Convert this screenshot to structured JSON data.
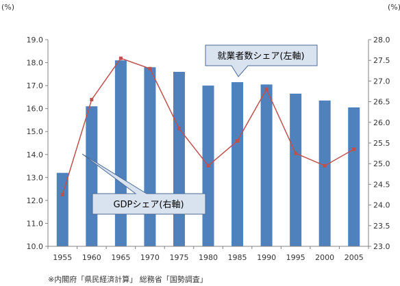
{
  "chart_data": {
    "type": "bar+line",
    "categories": [
      "1955",
      "1960",
      "1965",
      "1970",
      "1975",
      "1980",
      "1985",
      "1990",
      "1995",
      "2000",
      "2005"
    ],
    "series": [
      {
        "name": "就業者数シェア(左軸)",
        "type": "bar",
        "axis": "left",
        "color": "#4F81BD",
        "values": [
          13.2,
          16.1,
          18.1,
          17.8,
          17.6,
          17.0,
          17.15,
          17.05,
          16.65,
          16.35,
          16.05
        ]
      },
      {
        "name": "GDPシェア(右軸)",
        "type": "line",
        "axis": "right",
        "color": "#C0504D",
        "values": [
          24.25,
          26.55,
          27.55,
          27.3,
          25.85,
          24.95,
          25.55,
          26.8,
          25.25,
          24.95,
          25.35
        ]
      }
    ],
    "y_left": {
      "unit": "(%)",
      "min": 10.0,
      "max": 19.0,
      "ticks": [
        "10.0",
        "11.0",
        "12.0",
        "13.0",
        "14.0",
        "15.0",
        "16.0",
        "17.0",
        "18.0",
        "19.0"
      ]
    },
    "y_right": {
      "unit": "(%)",
      "min": 23.0,
      "max": 28.0,
      "ticks": [
        "23.0",
        "23.5",
        "24.0",
        "24.5",
        "25.0",
        "25.5",
        "26.0",
        "26.5",
        "27.0",
        "27.5",
        "28.0"
      ]
    },
    "grid": false,
    "callouts": {
      "bar": "就業者数シェア(左軸)",
      "line": "GDPシェア(右軸)"
    },
    "source_note": "※内閣府「県民経済計算」 総務省「国勢調査」"
  }
}
